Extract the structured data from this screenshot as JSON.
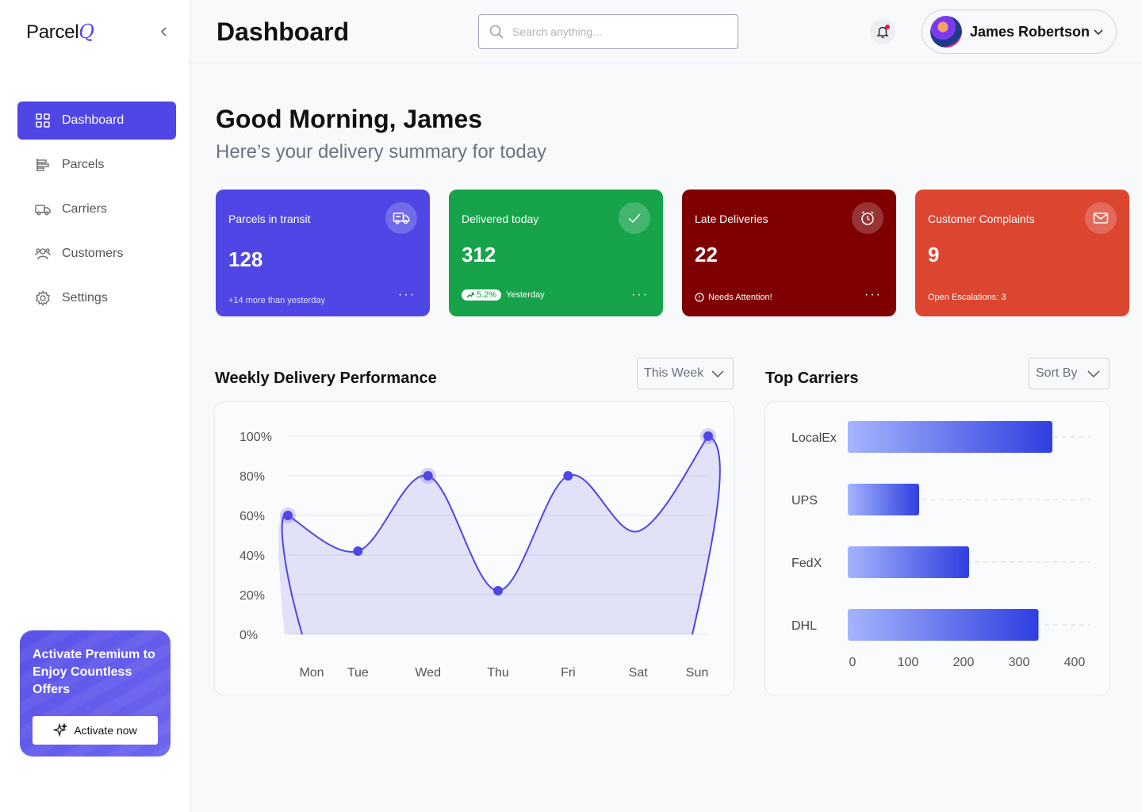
{
  "brand": {
    "name": "Parcel",
    "mark": "Q"
  },
  "nav": {
    "items": [
      {
        "label": "Dashboard",
        "icon": "grid-icon",
        "active": true
      },
      {
        "label": "Parcels",
        "icon": "parcels-icon",
        "active": false
      },
      {
        "label": "Carriers",
        "icon": "truck-icon",
        "active": false
      },
      {
        "label": "Customers",
        "icon": "users-icon",
        "active": false
      },
      {
        "label": "Settings",
        "icon": "gear-icon",
        "active": false
      }
    ]
  },
  "promo": {
    "text": "Activate Premium to Enjoy Countless Offers",
    "button": "Activate now"
  },
  "header": {
    "title": "Dashboard",
    "search_placeholder": "Search anything...",
    "user_name": "James Robertson"
  },
  "greeting": {
    "title": "Good Morning, James",
    "subtitle": "Here’s your delivery summary for today"
  },
  "cards": [
    {
      "title": "Parcels in transit",
      "value": "128",
      "foot": "+14 more than yesterday",
      "color": "#4f46e5",
      "icon": "truck-icon"
    },
    {
      "title": "Delivered today",
      "value": "312",
      "badge": "5.2%",
      "foot": "Yesterday",
      "color": "#16a34a",
      "icon": "check-icon"
    },
    {
      "title": "Late Deliveries",
      "value": "22",
      "foot": "Needs Attention!",
      "color": "#7f0000",
      "icon": "clock-icon"
    },
    {
      "title": "Customer Complaints",
      "value": "9",
      "foot": "Open Escalations: 3",
      "color": "#dc4530",
      "icon": "mail-icon"
    }
  ],
  "weekly": {
    "title": "Weekly Delivery Performance",
    "filter": "This Week"
  },
  "carriers": {
    "title": "Top Carriers",
    "filter": "Sort By"
  },
  "chart_data": [
    {
      "type": "area",
      "title": "Weekly Delivery Performance",
      "categories": [
        "Mon",
        "Tue",
        "Wed",
        "Thu",
        "Fri",
        "Sat",
        "Sun"
      ],
      "values": [
        60,
        42,
        80,
        22,
        80,
        52,
        100
      ],
      "y_ticks": [
        "100%",
        "80%",
        "60%",
        "40%",
        "20%",
        "0%"
      ],
      "ylim": [
        0,
        100
      ],
      "grid": true,
      "color": "#4f46e5"
    },
    {
      "type": "bar",
      "orientation": "horizontal",
      "title": "Top Carriers",
      "categories": [
        "LocalEx",
        "UPS",
        "FedX",
        "DHL"
      ],
      "values": [
        360,
        120,
        210,
        335
      ],
      "x_ticks": [
        "0",
        "100",
        "200",
        "300",
        "400"
      ],
      "xlim": [
        0,
        400
      ],
      "color": "#2f3fe0"
    }
  ]
}
